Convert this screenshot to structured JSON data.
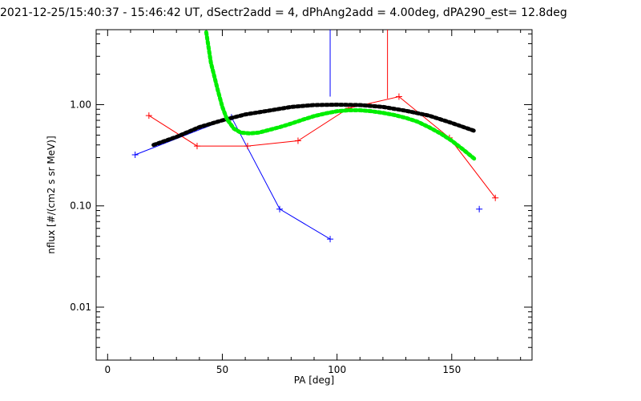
{
  "chart_data": {
    "type": "line",
    "title": "2021-12-25/15:40:37 - 15:46:42 UT, dSectr2add = 4, dPhAng2add = 4.00deg, dPA290_est=  12.8deg",
    "xlabel": "PA [deg]",
    "ylabel": "nflux [#/(cm2 s sr MeV)]",
    "xlim": [
      -5,
      185
    ],
    "ylim": [
      0.003,
      5.5
    ],
    "y_scale": "log",
    "x_ticks": [
      0,
      50,
      100,
      150
    ],
    "x_tick_labels": [
      "0",
      "50",
      "100",
      "150"
    ],
    "y_ticks": [
      0.01,
      0.1,
      1
    ],
    "y_tick_labels": [
      "0.01",
      "0.10",
      "1.00"
    ],
    "grid": false,
    "series": [
      {
        "color": "#0000ff",
        "style": "line-plus",
        "x": [
          12,
          54,
          75,
          97
        ],
        "y": [
          0.32,
          0.75,
          0.093,
          0.047
        ],
        "spike": {
          "x": 97,
          "y_from": 1.2,
          "y_to": 5.5
        },
        "extra_points": [
          {
            "x": 162,
            "y": 0.093
          }
        ]
      },
      {
        "color": "#ff0000",
        "style": "line-plus",
        "x": [
          18,
          39,
          61,
          83,
          105,
          127,
          149,
          169
        ],
        "y": [
          0.78,
          0.39,
          0.39,
          0.44,
          0.92,
          1.2,
          0.47,
          0.12
        ],
        "spike": {
          "x": 122,
          "y_from": 1.15,
          "y_to": 5.5
        }
      },
      {
        "color": "#000000",
        "style": "thick-dotted",
        "x": [
          20,
          30,
          40,
          50,
          60,
          70,
          80,
          90,
          100,
          110,
          120,
          130,
          140,
          150,
          160
        ],
        "y": [
          0.4,
          0.48,
          0.6,
          0.7,
          0.8,
          0.87,
          0.95,
          0.99,
          1.0,
          0.99,
          0.95,
          0.87,
          0.78,
          0.66,
          0.55
        ]
      },
      {
        "color": "#00ee00",
        "style": "thick-dotted",
        "x": [
          43,
          45,
          48,
          50,
          52,
          55,
          58,
          62,
          66,
          70,
          75,
          80,
          85,
          90,
          95,
          100,
          105,
          110,
          115,
          120,
          125,
          130,
          135,
          140,
          145,
          150,
          155,
          160
        ],
        "y": [
          5.2,
          2.6,
          1.4,
          0.95,
          0.72,
          0.58,
          0.53,
          0.52,
          0.53,
          0.56,
          0.6,
          0.65,
          0.71,
          0.77,
          0.82,
          0.86,
          0.88,
          0.88,
          0.86,
          0.83,
          0.79,
          0.74,
          0.68,
          0.6,
          0.52,
          0.44,
          0.36,
          0.29
        ]
      }
    ]
  }
}
